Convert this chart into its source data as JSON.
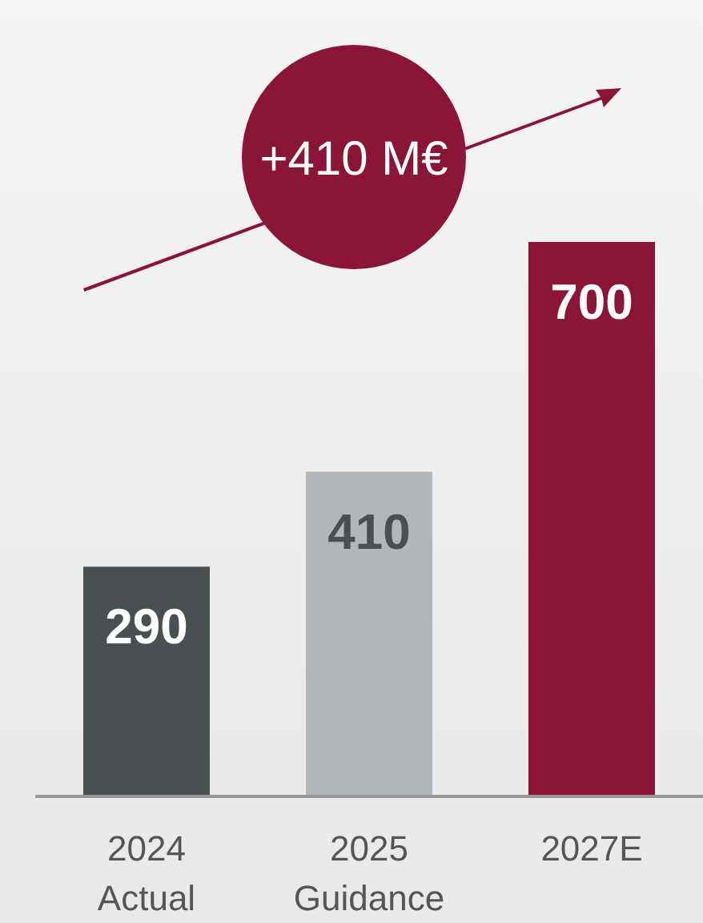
{
  "chart_data": {
    "type": "bar",
    "categories": [
      "2024\nActual",
      "2025\nGuidance",
      "2027E"
    ],
    "values": [
      290,
      410,
      700
    ],
    "colors": [
      "#4a4f51",
      "#b4b7b9",
      "#8b1538"
    ],
    "data_labels": true,
    "annotations": [
      "+410 M€"
    ]
  }
}
